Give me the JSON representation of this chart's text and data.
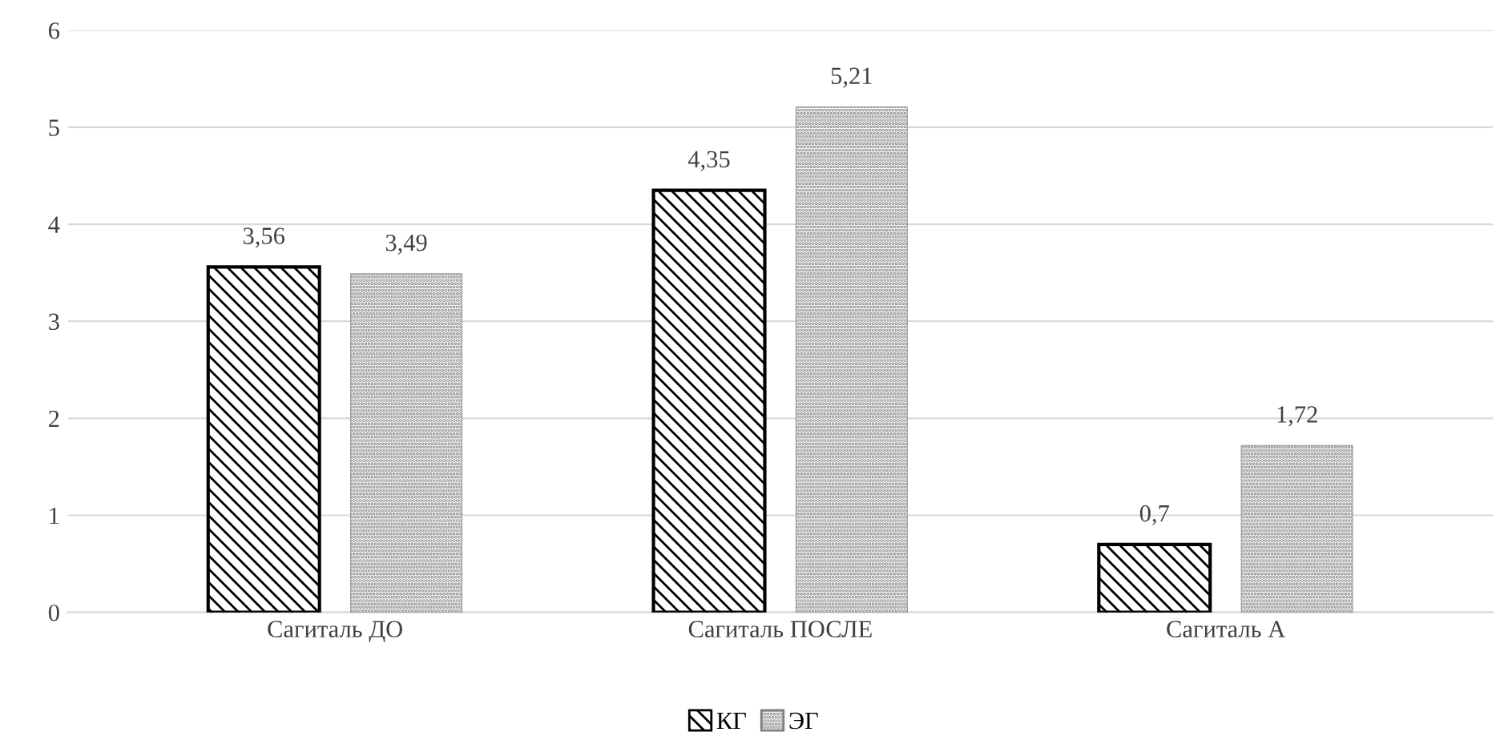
{
  "chart_data": {
    "type": "bar",
    "categories": [
      "Сагиталь ДО",
      "Сагиталь ПОСЛЕ",
      "Сагиталь А"
    ],
    "series": [
      {
        "name": "КГ",
        "color": "#000000",
        "values": [
          3.56,
          4.35,
          0.7
        ],
        "value_labels": [
          "3,56",
          "4,35",
          "0,7"
        ]
      },
      {
        "name": "ЭГ",
        "color": "#7f7f7f",
        "values": [
          3.49,
          5.21,
          1.72
        ],
        "value_labels": [
          "3,49",
          "5,21",
          "1,72"
        ]
      }
    ],
    "ylim": [
      0,
      6
    ],
    "yticks": [
      0,
      1,
      2,
      3,
      4,
      5,
      6
    ],
    "grid": "y",
    "legend": "bottom"
  }
}
